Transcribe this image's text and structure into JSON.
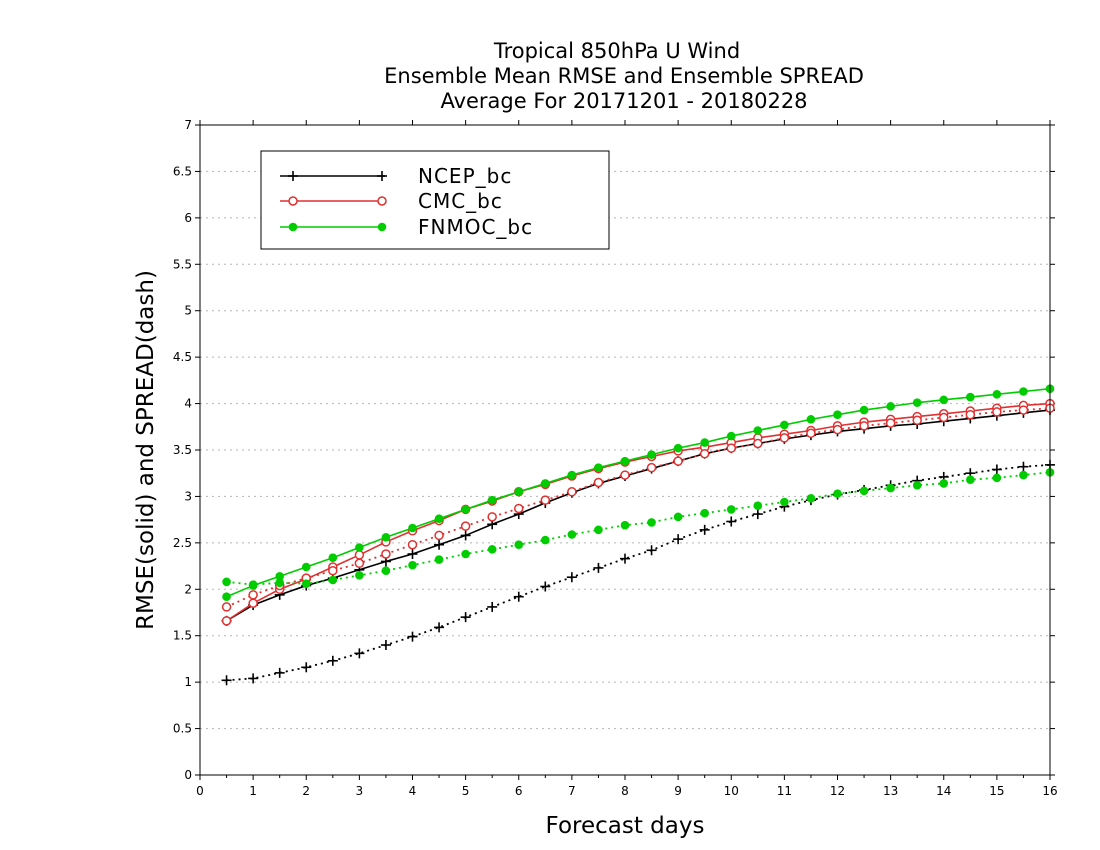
{
  "chart_data": {
    "type": "line",
    "title_lines": [
      "Tropical 850hPa U Wind",
      "Ensemble Mean RMSE and Ensemble SPREAD",
      "Average For 20171201 - 20180228"
    ],
    "xlabel": "Forecast days",
    "ylabel": "RMSE(solid) and SPREAD(dash)",
    "xlim": [
      0,
      16
    ],
    "ylim": [
      0,
      7
    ],
    "x_ticks": [
      "0",
      "1",
      "2",
      "3",
      "4",
      "5",
      "6",
      "7",
      "8",
      "9",
      "10",
      "11",
      "12",
      "13",
      "14",
      "15",
      "16"
    ],
    "y_ticks": [
      "0",
      "0.5",
      "1",
      "1.5",
      "2",
      "2.5",
      "3",
      "3.5",
      "4",
      "4.5",
      "5",
      "5.5",
      "6",
      "6.5",
      "7"
    ],
    "y_gridlines": true,
    "legend_position": "top-left",
    "x": [
      0.5,
      1,
      1.5,
      2,
      2.5,
      3,
      3.5,
      4,
      4.5,
      5,
      5.5,
      6,
      6.5,
      7,
      7.5,
      8,
      8.5,
      9,
      9.5,
      10,
      10.5,
      11,
      11.5,
      12,
      12.5,
      13,
      13.5,
      14,
      14.5,
      15,
      15.5,
      16
    ],
    "series": [
      {
        "name": "NCEP_bc",
        "color": "#000000",
        "marker": "plus",
        "rmse": [
          1.66,
          1.83,
          1.94,
          2.04,
          2.12,
          2.21,
          2.3,
          2.38,
          2.48,
          2.58,
          2.7,
          2.81,
          2.93,
          3.04,
          3.14,
          3.22,
          3.3,
          3.38,
          3.46,
          3.52,
          3.57,
          3.62,
          3.66,
          3.7,
          3.73,
          3.76,
          3.78,
          3.81,
          3.84,
          3.87,
          3.9,
          3.93
        ],
        "spread": [
          1.02,
          1.04,
          1.1,
          1.16,
          1.23,
          1.31,
          1.4,
          1.49,
          1.59,
          1.7,
          1.81,
          1.92,
          2.03,
          2.13,
          2.23,
          2.33,
          2.42,
          2.54,
          2.64,
          2.73,
          2.81,
          2.89,
          2.96,
          3.02,
          3.07,
          3.12,
          3.17,
          3.21,
          3.25,
          3.29,
          3.32,
          3.34
        ]
      },
      {
        "name": "CMC_bc",
        "color": "#e03030",
        "marker": "open-circle",
        "rmse": [
          1.66,
          1.85,
          2.0,
          2.11,
          2.24,
          2.37,
          2.51,
          2.63,
          2.74,
          2.86,
          2.95,
          3.05,
          3.13,
          3.22,
          3.3,
          3.37,
          3.43,
          3.49,
          3.53,
          3.58,
          3.63,
          3.67,
          3.71,
          3.76,
          3.8,
          3.83,
          3.86,
          3.89,
          3.92,
          3.95,
          3.98,
          4.0
        ],
        "spread": [
          1.81,
          1.94,
          2.04,
          2.12,
          2.2,
          2.28,
          2.38,
          2.48,
          2.58,
          2.68,
          2.78,
          2.87,
          2.96,
          3.05,
          3.15,
          3.23,
          3.31,
          3.38,
          3.46,
          3.52,
          3.57,
          3.63,
          3.68,
          3.72,
          3.76,
          3.79,
          3.82,
          3.85,
          3.88,
          3.91,
          3.93,
          3.95
        ]
      },
      {
        "name": "FNMOC_bc",
        "color": "#00cc00",
        "marker": "filled-circle",
        "rmse": [
          1.92,
          2.04,
          2.14,
          2.24,
          2.34,
          2.45,
          2.56,
          2.66,
          2.76,
          2.86,
          2.96,
          3.05,
          3.14,
          3.23,
          3.31,
          3.38,
          3.45,
          3.52,
          3.58,
          3.65,
          3.71,
          3.77,
          3.83,
          3.88,
          3.93,
          3.97,
          4.01,
          4.04,
          4.07,
          4.1,
          4.13,
          4.16
        ],
        "spread": [
          2.08,
          2.05,
          2.07,
          2.06,
          2.1,
          2.15,
          2.2,
          2.26,
          2.32,
          2.38,
          2.43,
          2.48,
          2.53,
          2.59,
          2.64,
          2.69,
          2.72,
          2.78,
          2.82,
          2.86,
          2.9,
          2.94,
          2.98,
          3.03,
          3.06,
          3.09,
          3.12,
          3.14,
          3.18,
          3.2,
          3.23,
          3.26
        ]
      }
    ]
  }
}
